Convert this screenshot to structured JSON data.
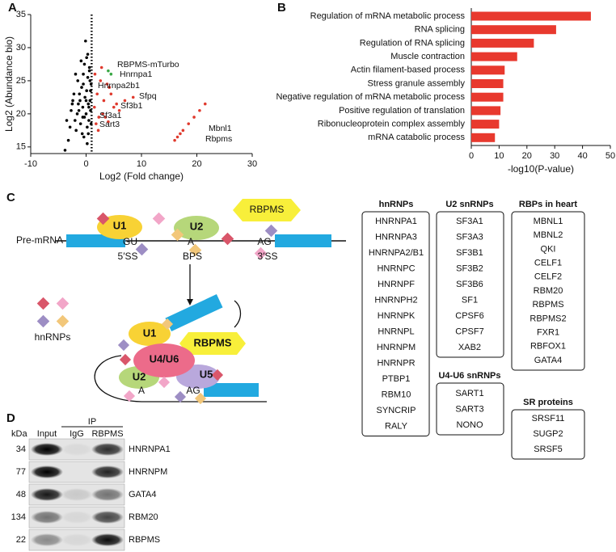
{
  "panel_labels": [
    "A",
    "B",
    "C",
    "D"
  ],
  "chart_data": [
    {
      "type": "scatter",
      "xlabel": "Log2 (Fold change)",
      "ylabel": "Log2 (Abundance bio)",
      "xlim": [
        -10,
        30
      ],
      "xticks": [
        -10,
        0,
        10,
        20,
        30
      ],
      "ylim": [
        14,
        35
      ],
      "yticks": [
        15,
        20,
        25,
        30,
        35
      ],
      "threshold_x": 1,
      "series": [
        {
          "color": "#000000",
          "x": [
            -3.8,
            -3.2,
            -2.9,
            -2.5,
            -2.2,
            -2,
            -1.8,
            -1.5,
            -1.3,
            -1.1,
            -1,
            -0.8,
            -0.6,
            -0.5,
            -0.3,
            -0.2,
            0,
            0.1,
            0.2,
            0.3,
            0.4,
            0.5,
            0.6,
            0.7,
            0.8,
            0.9,
            -0.4,
            -0.9,
            -1.6,
            -2.4,
            0.3,
            -0.1,
            0.6,
            -0.7,
            0.9,
            -1.2,
            0.2,
            -0.5,
            0.5,
            -0.3,
            -3.5,
            -2.7,
            0,
            0.4,
            -1.9,
            0.8,
            -0.6,
            0.1,
            -1.4,
            0.7
          ],
          "y": [
            14.5,
            16,
            18,
            21.5,
            23,
            19,
            17.5,
            25,
            20.5,
            22,
            18.5,
            24,
            21,
            26,
            19.5,
            22.5,
            20,
            23.5,
            18,
            25.5,
            21.5,
            19,
            27,
            22,
            20.5,
            24.5,
            16.5,
            28,
            20,
            22,
            29,
            31,
            26.5,
            17,
            18.5,
            23,
            15.5,
            24.5,
            21,
            27.5,
            19,
            20.5,
            22,
            17,
            26,
            23.5,
            19.5,
            28.5,
            21.5,
            25
          ]
        },
        {
          "color": "#e03a2e",
          "x": [
            1.5,
            1.8,
            2,
            2.3,
            2.6,
            3,
            3.2,
            3.5,
            4,
            4.2,
            5,
            5.5,
            6,
            7,
            8.5,
            1.6,
            2.2,
            2.8,
            16,
            16.5,
            17,
            17.5,
            18.5,
            19.5,
            20.5,
            21.5,
            3.8,
            4.5
          ],
          "y": [
            21,
            18.5,
            23,
            19.5,
            25,
            20,
            22,
            19.5,
            18.8,
            24,
            21,
            21.5,
            20.5,
            22,
            22.5,
            26,
            17.5,
            27,
            16,
            16.5,
            17,
            17.5,
            18.5,
            19.5,
            20.5,
            21.5,
            24.5,
            23
          ]
        },
        {
          "color": "#3aa845",
          "x": [
            4,
            4.5
          ],
          "y": [
            26.5,
            26
          ]
        }
      ],
      "annotations": [
        "RBPMS-mTurbo",
        "Hnrnpa1",
        "Hnrnpa2b1",
        "Sfpq",
        "Sf3b1",
        "Sf3a1",
        "Sart3",
        "Mbnl1",
        "Rbpms"
      ]
    },
    {
      "type": "bar",
      "orientation": "horizontal",
      "color": "#e8392e",
      "xlabel": "-log10(P-value)",
      "categories": [
        "Regulation of mRNA metabolic process",
        "RNA splicing",
        "Regulation of RNA splicing",
        "Muscle contraction",
        "Actin filament-based process",
        "Stress granule assembly",
        "Negative regulation of mRNA metabolic process",
        "Positive regulation of translation",
        "Ribonucleoprotein complex assembly",
        "mRNA catabolic process"
      ],
      "values": [
        43,
        30.5,
        22.5,
        16.5,
        12,
        11.5,
        11.5,
        10.5,
        10,
        8.5
      ],
      "xlim": [
        0,
        50
      ],
      "xticks": [
        0,
        10,
        20,
        30,
        40,
        50
      ]
    }
  ],
  "diagram": {
    "pre_mrna": "Pre-mRNA",
    "u1": "U1",
    "u2": "U2",
    "rbpms": "RBPMS",
    "gu": "GU",
    "a": "A",
    "ag": "AG",
    "ss5": "5′SS",
    "bps": "BPS",
    "ss3": "3′SS",
    "legend": "hnRNPs",
    "complex_u1": "U1",
    "complex_u4u6": "U4/U6",
    "complex_u5": "U5",
    "complex_u2": "U2",
    "complex_rbpms": "RBPMS",
    "complex_a": "A",
    "complex_ag": "AG"
  },
  "tables": [
    {
      "title": "hnRNPs",
      "items": [
        "HNRNPA1",
        "HNRNPA3",
        "HNRNPA2/B1",
        "HNRNPC",
        "HNRNPF",
        "HNRNPH2",
        "HNRNPK",
        "HNRNPL",
        "HNRNPM",
        "HNRNPR",
        "PTBP1",
        "RBM10",
        "SYNCRIP",
        "RALY"
      ]
    },
    {
      "title": "U2 snRNPs",
      "items": [
        "SF3A1",
        "SF3A3",
        "SF3B1",
        "SF3B2",
        "SF3B6",
        "SF1",
        "CPSF6",
        "CPSF7",
        "XAB2"
      ]
    },
    {
      "title": "U4-U6 snRNPs",
      "items": [
        "SART1",
        "SART3",
        "NONO"
      ]
    },
    {
      "title": "RBPs in heart",
      "items": [
        "MBNL1",
        "MBNL2",
        "QKI",
        "CELF1",
        "CELF2",
        "RBM20",
        "RBPMS",
        "RBPMS2",
        "FXR1",
        "RBFOX1",
        "GATA4"
      ]
    },
    {
      "title": "SR proteins",
      "items": [
        "SRSF11",
        "SUGP2",
        "SRSF5"
      ]
    }
  ],
  "blot": {
    "unit": "kDa",
    "ip_label": "IP",
    "lanes": [
      "Input",
      "IgG",
      "RBPMS"
    ],
    "rows": [
      {
        "kda": 34,
        "protein": "HNRNPA1"
      },
      {
        "kda": 77,
        "protein": "HNRNPM"
      },
      {
        "kda": 48,
        "protein": "GATA4"
      },
      {
        "kda": 134,
        "protein": "RBM20"
      },
      {
        "kda": 22,
        "protein": "RBPMS"
      }
    ]
  }
}
